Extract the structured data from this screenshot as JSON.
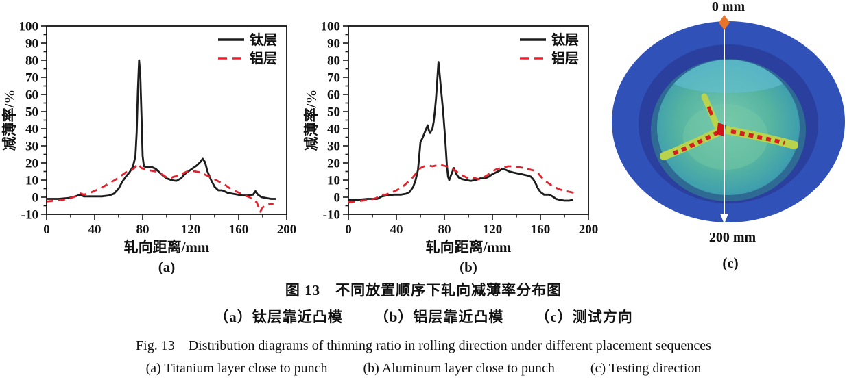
{
  "chart_data": [
    {
      "type": "line",
      "panel_label": "(a)",
      "xlabel": "轧向距离/mm",
      "ylabel": "减薄率/%",
      "xlim": [
        0,
        200
      ],
      "ylim": [
        -10,
        100
      ],
      "xticks": [
        0,
        40,
        80,
        120,
        160,
        200
      ],
      "yticks": [
        -10,
        0,
        10,
        20,
        30,
        40,
        50,
        60,
        70,
        80,
        90,
        100
      ],
      "xtick_minor": 20,
      "ytick_minor": 5,
      "grid": false,
      "legend_position": "top-right",
      "series": [
        {
          "name": "钛层",
          "color": "#1c1c1c",
          "dash": false,
          "points": [
            [
              0,
              -1
            ],
            [
              10,
              -1
            ],
            [
              18,
              -0.5
            ],
            [
              24,
              0.5
            ],
            [
              28,
              1.5
            ],
            [
              31,
              0.5
            ],
            [
              38,
              0.5
            ],
            [
              46,
              0.5
            ],
            [
              52,
              1
            ],
            [
              56,
              2
            ],
            [
              60,
              5
            ],
            [
              63,
              9
            ],
            [
              66,
              12
            ],
            [
              69,
              14.5
            ],
            [
              72,
              18
            ],
            [
              74,
              24
            ],
            [
              75,
              38
            ],
            [
              76,
              62
            ],
            [
              77,
              80
            ],
            [
              78,
              72
            ],
            [
              79,
              48
            ],
            [
              80,
              24
            ],
            [
              81,
              18
            ],
            [
              84,
              17.5
            ],
            [
              88,
              17.5
            ],
            [
              91,
              16.5
            ],
            [
              94,
              14.5
            ],
            [
              97,
              12.5
            ],
            [
              100,
              11
            ],
            [
              104,
              10
            ],
            [
              108,
              9.5
            ],
            [
              112,
              11
            ],
            [
              115,
              13.5
            ],
            [
              118,
              15
            ],
            [
              122,
              17
            ],
            [
              125,
              18.5
            ],
            [
              128,
              20.5
            ],
            [
              130,
              22.5
            ],
            [
              132,
              20.5
            ],
            [
              134,
              15
            ],
            [
              137,
              10
            ],
            [
              140,
              6
            ],
            [
              143,
              4
            ],
            [
              146,
              4
            ],
            [
              148,
              3.5
            ],
            [
              151,
              2.5
            ],
            [
              155,
              2
            ],
            [
              159,
              1.5
            ],
            [
              163,
              1
            ],
            [
              168,
              1
            ],
            [
              172,
              1.5
            ],
            [
              174,
              3.5
            ],
            [
              176,
              1.5
            ],
            [
              179,
              0
            ],
            [
              183,
              -0.5
            ],
            [
              187,
              -1
            ],
            [
              191,
              -1
            ]
          ]
        },
        {
          "name": "铝层",
          "color": "#e2232f",
          "dash": true,
          "points": [
            [
              0,
              -2.5
            ],
            [
              7,
              -2
            ],
            [
              14,
              -1.5
            ],
            [
              20,
              -0.5
            ],
            [
              24,
              0.5
            ],
            [
              27,
              2.5
            ],
            [
              31,
              1.5
            ],
            [
              36,
              2.5
            ],
            [
              41,
              4
            ],
            [
              47,
              6
            ],
            [
              53,
              8.5
            ],
            [
              58,
              10.5
            ],
            [
              62,
              12.5
            ],
            [
              66,
              14.5
            ],
            [
              70,
              15.5
            ],
            [
              73,
              17
            ],
            [
              76,
              19.5
            ],
            [
              79,
              17
            ],
            [
              83,
              16
            ],
            [
              87,
              15.5
            ],
            [
              91,
              15
            ],
            [
              94,
              14
            ],
            [
              97,
              13
            ],
            [
              100,
              11.5
            ],
            [
              103,
              11
            ],
            [
              106,
              12
            ],
            [
              110,
              12.5
            ],
            [
              114,
              14
            ],
            [
              117,
              15
            ],
            [
              120,
              15.5
            ],
            [
              124,
              15
            ],
            [
              128,
              14.5
            ],
            [
              131,
              13.5
            ],
            [
              134,
              12.5
            ],
            [
              138,
              11
            ],
            [
              141,
              10
            ],
            [
              145,
              8.5
            ],
            [
              149,
              7
            ],
            [
              152,
              5.5
            ],
            [
              156,
              4
            ],
            [
              159,
              3
            ],
            [
              162,
              2
            ],
            [
              165,
              1
            ],
            [
              169,
              0
            ],
            [
              172,
              -1.5
            ],
            [
              175,
              -3
            ],
            [
              177,
              -6.5
            ],
            [
              178,
              -8.5
            ],
            [
              180,
              -6
            ],
            [
              183,
              -4.5
            ],
            [
              186,
              -4
            ],
            [
              189,
              -4
            ]
          ]
        }
      ]
    },
    {
      "type": "line",
      "panel_label": "(b)",
      "xlabel": "轧向距离/mm",
      "ylabel": "减薄率/%",
      "xlim": [
        0,
        200
      ],
      "ylim": [
        -10,
        100
      ],
      "xticks": [
        0,
        40,
        80,
        120,
        160,
        200
      ],
      "yticks": [
        -10,
        0,
        10,
        20,
        30,
        40,
        50,
        60,
        70,
        80,
        90,
        100
      ],
      "xtick_minor": 20,
      "ytick_minor": 5,
      "grid": false,
      "legend_position": "top-right",
      "series": [
        {
          "name": "钛层",
          "color": "#1c1c1c",
          "dash": false,
          "points": [
            [
              0,
              -1.5
            ],
            [
              8,
              -1.5
            ],
            [
              16,
              -1
            ],
            [
              24,
              -1
            ],
            [
              28,
              0.5
            ],
            [
              32,
              1
            ],
            [
              38,
              1.5
            ],
            [
              44,
              1.5
            ],
            [
              48,
              2
            ],
            [
              51,
              3
            ],
            [
              54,
              6
            ],
            [
              56,
              10
            ],
            [
              58,
              16
            ],
            [
              59,
              24
            ],
            [
              60,
              32
            ],
            [
              62,
              35
            ],
            [
              64,
              38.5
            ],
            [
              66,
              42
            ],
            [
              67,
              39
            ],
            [
              68,
              37.5
            ],
            [
              70,
              40
            ],
            [
              71,
              44
            ],
            [
              72,
              50
            ],
            [
              73,
              58
            ],
            [
              74,
              68
            ],
            [
              75,
              79
            ],
            [
              76,
              72
            ],
            [
              77,
              64
            ],
            [
              78,
              57
            ],
            [
              79,
              49
            ],
            [
              80,
              40
            ],
            [
              81,
              30
            ],
            [
              82,
              19
            ],
            [
              83,
              12
            ],
            [
              84,
              10
            ],
            [
              85,
              12
            ],
            [
              87,
              15.5
            ],
            [
              88,
              17
            ],
            [
              90,
              13.5
            ],
            [
              92,
              11.5
            ],
            [
              95,
              10.5
            ],
            [
              98,
              10
            ],
            [
              102,
              9.5
            ],
            [
              106,
              10
            ],
            [
              110,
              11
            ],
            [
              114,
              11
            ],
            [
              117,
              12
            ],
            [
              120,
              13.5
            ],
            [
              123,
              14.5
            ],
            [
              126,
              15.5
            ],
            [
              128,
              16.5
            ],
            [
              131,
              16
            ],
            [
              134,
              15
            ],
            [
              137,
              14.5
            ],
            [
              140,
              14
            ],
            [
              144,
              13.5
            ],
            [
              147,
              13
            ],
            [
              150,
              12.5
            ],
            [
              152,
              12
            ],
            [
              154,
              10.5
            ],
            [
              156,
              8
            ],
            [
              158,
              5
            ],
            [
              160,
              3
            ],
            [
              163,
              1.5
            ],
            [
              167,
              1.5
            ],
            [
              170,
              0.5
            ],
            [
              173,
              -1
            ],
            [
              176,
              -1.5
            ],
            [
              180,
              -2
            ],
            [
              184,
              -2
            ],
            [
              187,
              -1.5
            ]
          ]
        },
        {
          "name": "铝层",
          "color": "#e2232f",
          "dash": true,
          "points": [
            [
              0,
              -3
            ],
            [
              6,
              -2.5
            ],
            [
              12,
              -2
            ],
            [
              18,
              -1.5
            ],
            [
              23,
              -0.5
            ],
            [
              27,
              1.5
            ],
            [
              31,
              1.5
            ],
            [
              35,
              2.5
            ],
            [
              40,
              4
            ],
            [
              45,
              6
            ],
            [
              49,
              8.5
            ],
            [
              53,
              11
            ],
            [
              57,
              14.5
            ],
            [
              60,
              17
            ],
            [
              63,
              18
            ],
            [
              67,
              18.5
            ],
            [
              70,
              18
            ],
            [
              73,
              18.5
            ],
            [
              76,
              19
            ],
            [
              79,
              18.5
            ],
            [
              82,
              18
            ],
            [
              85,
              17
            ],
            [
              88,
              16
            ],
            [
              91,
              14.5
            ],
            [
              94,
              13
            ],
            [
              97,
              12
            ],
            [
              100,
              11
            ],
            [
              103,
              11.5
            ],
            [
              106,
              11
            ],
            [
              109,
              10.5
            ],
            [
              112,
              11.5
            ],
            [
              115,
              12.5
            ],
            [
              118,
              14
            ],
            [
              121,
              15.5
            ],
            [
              124,
              16.5
            ],
            [
              127,
              17
            ],
            [
              130,
              17.5
            ],
            [
              133,
              18
            ],
            [
              136,
              18
            ],
            [
              139,
              17.5
            ],
            [
              143,
              17.5
            ],
            [
              146,
              17
            ],
            [
              149,
              16.5
            ],
            [
              152,
              16
            ],
            [
              155,
              15.5
            ],
            [
              158,
              14
            ],
            [
              161,
              11.5
            ],
            [
              164,
              9.5
            ],
            [
              167,
              8
            ],
            [
              170,
              6.5
            ],
            [
              173,
              5.5
            ],
            [
              176,
              4.5
            ],
            [
              179,
              4
            ],
            [
              182,
              3.5
            ],
            [
              185,
              3
            ],
            [
              188,
              2.5
            ]
          ]
        }
      ]
    }
  ],
  "image_c": {
    "top_label": "0 mm",
    "bottom_label": "200 mm",
    "panel_label": "(c)",
    "colors": {
      "flange_outer": "#3051b8",
      "flange_inner": "#2a3f9e",
      "dome_rim": "#2f6a94",
      "dome": "#4fae9f",
      "dome_light": "#7bcbb2",
      "dome_top_sheen": "#62bfd2",
      "crack_band": "#b9d44c",
      "crack_marks": "#d42020",
      "marker_orange": "#e87429",
      "arrow": "#ffffff"
    }
  },
  "caption": {
    "zh_title": "图 13　不同放置顺序下轧向减薄率分布图",
    "zh_items": [
      "（a）钛层靠近凸模",
      "（b）铝层靠近凸模",
      "（c）测试方向"
    ],
    "en_title": "Fig. 13　Distribution diagrams of thinning ratio in rolling direction under different placement sequences",
    "en_items": [
      "(a) Titanium layer close to punch",
      "(b) Aluminum layer close to punch",
      "(c) Testing direction"
    ]
  }
}
